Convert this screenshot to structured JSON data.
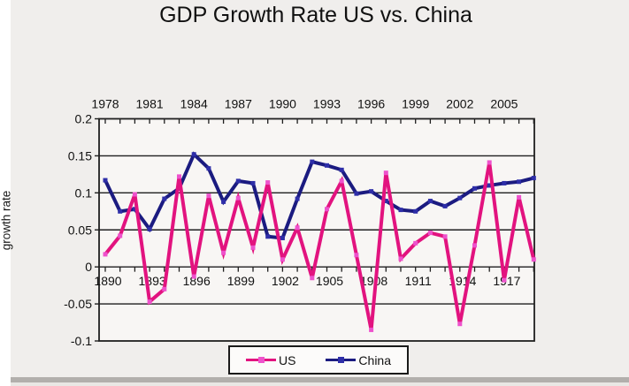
{
  "title": "GDP Growth Rate US vs. China",
  "y_axis_title": "growth rate",
  "legend": {
    "items": [
      {
        "label": "US"
      },
      {
        "label": "China"
      }
    ]
  },
  "palette": {
    "background": "#f0eeec",
    "plot_background": "#f8f6f4",
    "grid": "#1f1f1f",
    "text": "#111111",
    "us_line": "#e2137f",
    "us_marker": "#ee52cc",
    "china_line": "#1b1b80",
    "china_marker": "#2e2ea8"
  },
  "chart_data": {
    "type": "line",
    "title": "GDP Growth Rate US vs. China",
    "ylabel": "growth rate",
    "ylim": [
      -0.1,
      0.2
    ],
    "grid": "horizontal",
    "legend_position": "bottom",
    "y_axis": {
      "ticks": [
        0.2,
        0.15,
        0.1,
        0.05,
        0,
        -0.05,
        -0.1
      ],
      "tick_labels": [
        "0.2",
        "0.15",
        "0.1",
        "0.05",
        "0",
        "-0.05",
        "-0.1"
      ]
    },
    "top_axis": {
      "tick_labels": [
        "1978",
        "1981",
        "1984",
        "1987",
        "1990",
        "1993",
        "1996",
        "1999",
        "2002",
        "2005"
      ],
      "label_interval_years": 3
    },
    "bottom_axis": {
      "tick_labels": [
        "1890",
        "1893",
        "1896",
        "1899",
        "1902",
        "1905",
        "1908",
        "1911",
        "1914",
        "1917"
      ],
      "label_interval_years": 3
    },
    "series": [
      {
        "name": "China",
        "axis": "top",
        "color": "#1b1b80",
        "marker_color": "#2e2ea8",
        "years": [
          1978,
          1979,
          1980,
          1981,
          1982,
          1983,
          1984,
          1985,
          1986,
          1987,
          1988,
          1989,
          1990,
          1991,
          1992,
          1993,
          1994,
          1995,
          1996,
          1997,
          1998,
          1999,
          2000,
          2001,
          2002,
          2003,
          2004,
          2005,
          2006,
          2007
        ],
        "values": [
          0.117,
          0.075,
          0.078,
          0.051,
          0.092,
          0.106,
          0.152,
          0.133,
          0.088,
          0.116,
          0.113,
          0.041,
          0.039,
          0.092,
          0.142,
          0.137,
          0.131,
          0.099,
          0.102,
          0.089,
          0.077,
          0.075,
          0.089,
          0.082,
          0.093,
          0.106,
          0.11,
          0.113,
          0.115,
          0.12
        ]
      },
      {
        "name": "US",
        "axis": "bottom",
        "color": "#e2137f",
        "marker_color": "#ee52cc",
        "years": [
          1890,
          1891,
          1892,
          1893,
          1894,
          1895,
          1896,
          1897,
          1898,
          1899,
          1900,
          1901,
          1902,
          1903,
          1904,
          1905,
          1906,
          1907,
          1908,
          1909,
          1910,
          1911,
          1912,
          1913,
          1914,
          1915,
          1916,
          1917,
          1918,
          1919
        ],
        "values": [
          0.017,
          0.042,
          0.098,
          -0.047,
          -0.03,
          0.122,
          -0.013,
          0.096,
          0.019,
          0.093,
          0.026,
          0.114,
          0.01,
          0.053,
          -0.015,
          0.078,
          0.116,
          0.016,
          -0.085,
          0.127,
          0.011,
          0.032,
          0.046,
          0.041,
          -0.077,
          0.029,
          0.141,
          -0.018,
          0.094,
          0.01
        ]
      }
    ]
  }
}
